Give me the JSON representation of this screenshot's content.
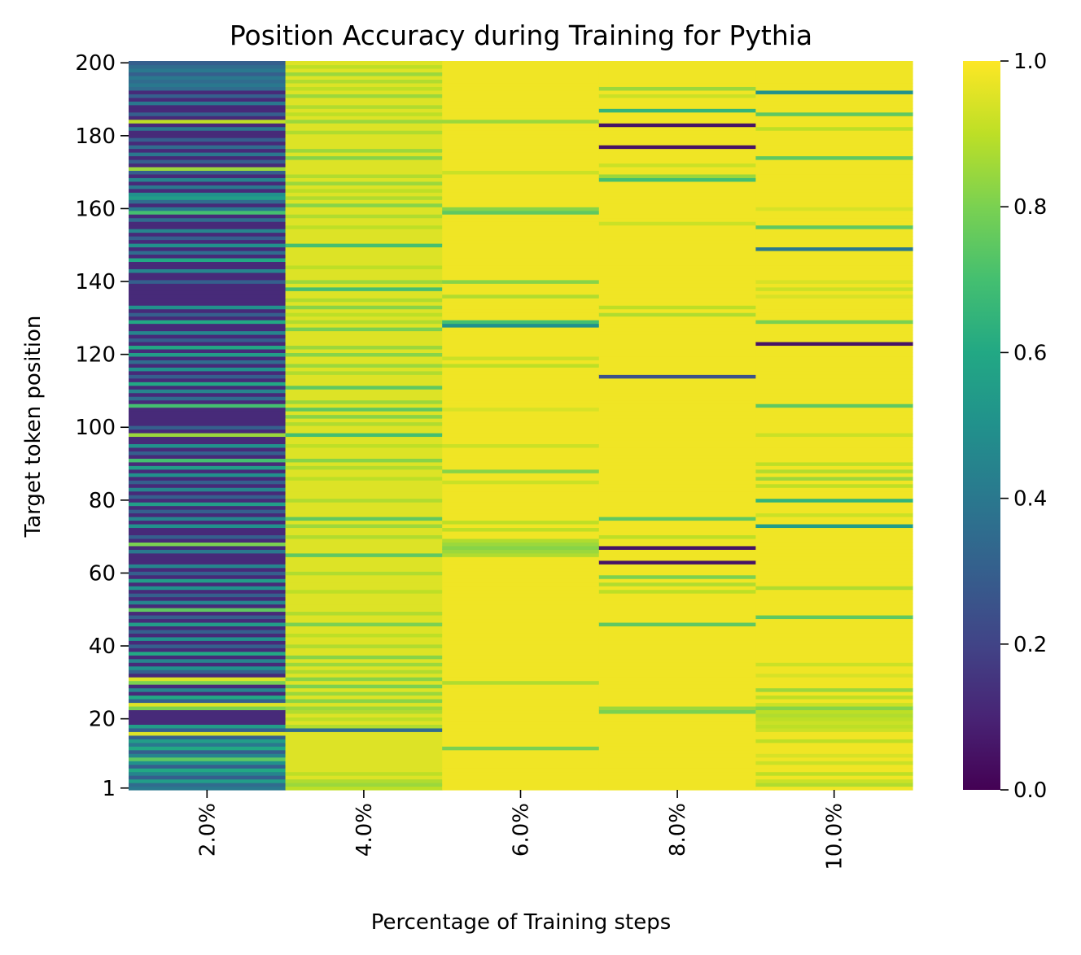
{
  "chart_data": {
    "type": "heatmap",
    "title": "Position Accuracy during Training for Pythia",
    "xlabel": "Percentage of Training steps",
    "ylabel": "Target token position",
    "categories": [
      "2.0%",
      "4.0%",
      "6.0%",
      "8.0%",
      "10.0%"
    ],
    "y_range": [
      1,
      200
    ],
    "y_ticks": [
      "1",
      "20",
      "40",
      "60",
      "80",
      "100",
      "120",
      "140",
      "160",
      "180",
      "200"
    ],
    "colorbar": {
      "range": [
        0,
        1
      ],
      "ticks": [
        "0.0",
        "0.2",
        "0.4",
        "0.6",
        "0.8",
        "1.0"
      ],
      "colormap": "viridis"
    },
    "series": [
      {
        "category": "2.0%",
        "base_value": 0.12,
        "overrides": [
          [
            1,
            0.4
          ],
          [
            2,
            0.35
          ],
          [
            3,
            0.55
          ],
          [
            4,
            0.3
          ],
          [
            5,
            0.45
          ],
          [
            6,
            0.6
          ],
          [
            7,
            0.3
          ],
          [
            8,
            0.5
          ],
          [
            9,
            0.75
          ],
          [
            10,
            0.45
          ],
          [
            11,
            0.3
          ],
          [
            12,
            0.6
          ],
          [
            13,
            0.4
          ],
          [
            14,
            0.55
          ],
          [
            15,
            0.3
          ],
          [
            16,
            0.95
          ],
          [
            17,
            0.3
          ],
          [
            18,
            0.55
          ],
          [
            23,
            0.8
          ],
          [
            24,
            0.95
          ],
          [
            25,
            0.3
          ],
          [
            26,
            0.6
          ],
          [
            28,
            0.45
          ],
          [
            30,
            0.8
          ],
          [
            31,
            0.95
          ],
          [
            33,
            0.3
          ],
          [
            34,
            0.5
          ],
          [
            36,
            0.45
          ],
          [
            38,
            0.6
          ],
          [
            40,
            0.3
          ],
          [
            42,
            0.5
          ],
          [
            44,
            0.3
          ],
          [
            46,
            0.55
          ],
          [
            48,
            0.3
          ],
          [
            50,
            0.75
          ],
          [
            52,
            0.45
          ],
          [
            54,
            0.3
          ],
          [
            56,
            0.5
          ],
          [
            58,
            0.55
          ],
          [
            60,
            0.3
          ],
          [
            62,
            0.45
          ],
          [
            66,
            0.4
          ],
          [
            68,
            0.8
          ],
          [
            70,
            0.3
          ],
          [
            73,
            0.5
          ],
          [
            75,
            0.45
          ],
          [
            77,
            0.3
          ],
          [
            79,
            0.55
          ],
          [
            81,
            0.3
          ],
          [
            83,
            0.45
          ],
          [
            85,
            0.3
          ],
          [
            87,
            0.5
          ],
          [
            89,
            0.55
          ],
          [
            91,
            0.7
          ],
          [
            93,
            0.3
          ],
          [
            95,
            0.5
          ],
          [
            98,
            0.85
          ],
          [
            100,
            0.3
          ],
          [
            106,
            0.7
          ],
          [
            108,
            0.35
          ],
          [
            110,
            0.45
          ],
          [
            112,
            0.6
          ],
          [
            114,
            0.3
          ],
          [
            116,
            0.5
          ],
          [
            118,
            0.35
          ],
          [
            120,
            0.55
          ],
          [
            122,
            0.6
          ],
          [
            124,
            0.3
          ],
          [
            126,
            0.45
          ],
          [
            129,
            0.6
          ],
          [
            131,
            0.3
          ],
          [
            133,
            0.5
          ],
          [
            140,
            0.3
          ],
          [
            143,
            0.45
          ],
          [
            146,
            0.6
          ],
          [
            148,
            0.35
          ],
          [
            150,
            0.5
          ],
          [
            152,
            0.3
          ],
          [
            154,
            0.45
          ],
          [
            157,
            0.35
          ],
          [
            159,
            0.7
          ],
          [
            160,
            0.4
          ],
          [
            162,
            0.35
          ],
          [
            163,
            0.55
          ],
          [
            164,
            0.5
          ],
          [
            166,
            0.4
          ],
          [
            168,
            0.45
          ],
          [
            170,
            0.3
          ],
          [
            171,
            0.85
          ],
          [
            173,
            0.3
          ],
          [
            175,
            0.4
          ],
          [
            177,
            0.35
          ],
          [
            179,
            0.3
          ],
          [
            182,
            0.4
          ],
          [
            184,
            0.9
          ],
          [
            186,
            0.3
          ],
          [
            189,
            0.4
          ],
          [
            191,
            0.3
          ],
          [
            193,
            0.35
          ],
          [
            194,
            0.4
          ],
          [
            195,
            0.35
          ],
          [
            196,
            0.4
          ],
          [
            197,
            0.3
          ],
          [
            198,
            0.4
          ],
          [
            199,
            0.35
          ],
          [
            200,
            0.3
          ]
        ]
      },
      {
        "category": "4.0%",
        "base_value": 0.95,
        "overrides": [
          [
            1,
            0.9
          ],
          [
            2,
            0.85
          ],
          [
            3,
            0.88
          ],
          [
            5,
            0.9
          ],
          [
            17,
            0.35
          ],
          [
            18,
            0.88
          ],
          [
            20,
            0.9
          ],
          [
            22,
            0.88
          ],
          [
            23,
            0.85
          ],
          [
            25,
            0.82
          ],
          [
            27,
            0.85
          ],
          [
            29,
            0.8
          ],
          [
            31,
            0.82
          ],
          [
            33,
            0.88
          ],
          [
            35,
            0.85
          ],
          [
            37,
            0.82
          ],
          [
            40,
            0.88
          ],
          [
            43,
            0.9
          ],
          [
            46,
            0.8
          ],
          [
            49,
            0.88
          ],
          [
            55,
            0.9
          ],
          [
            60,
            0.88
          ],
          [
            65,
            0.75
          ],
          [
            70,
            0.88
          ],
          [
            73,
            0.85
          ],
          [
            75,
            0.75
          ],
          [
            80,
            0.88
          ],
          [
            86,
            0.9
          ],
          [
            89,
            0.88
          ],
          [
            91,
            0.82
          ],
          [
            95,
            0.9
          ],
          [
            98,
            0.7
          ],
          [
            101,
            0.88
          ],
          [
            103,
            0.82
          ],
          [
            105,
            0.75
          ],
          [
            107,
            0.85
          ],
          [
            111,
            0.75
          ],
          [
            115,
            0.88
          ],
          [
            117,
            0.85
          ],
          [
            120,
            0.82
          ],
          [
            122,
            0.85
          ],
          [
            127,
            0.8
          ],
          [
            129,
            0.88
          ],
          [
            131,
            0.9
          ],
          [
            133,
            0.82
          ],
          [
            135,
            0.88
          ],
          [
            138,
            0.7
          ],
          [
            140,
            0.85
          ],
          [
            144,
            0.9
          ],
          [
            150,
            0.7
          ],
          [
            155,
            0.9
          ],
          [
            158,
            0.88
          ],
          [
            161,
            0.82
          ],
          [
            163,
            0.88
          ],
          [
            165,
            0.9
          ],
          [
            167,
            0.85
          ],
          [
            169,
            0.88
          ],
          [
            174,
            0.82
          ],
          [
            176,
            0.85
          ],
          [
            181,
            0.88
          ],
          [
            184,
            0.85
          ],
          [
            186,
            0.9
          ],
          [
            188,
            0.88
          ],
          [
            191,
            0.85
          ],
          [
            193,
            0.9
          ],
          [
            195,
            0.88
          ],
          [
            197,
            0.85
          ],
          [
            199,
            0.9
          ]
        ]
      },
      {
        "category": "6.0%",
        "base_value": 0.98,
        "overrides": [
          [
            12,
            0.8
          ],
          [
            30,
            0.88
          ],
          [
            65,
            0.88
          ],
          [
            66,
            0.85
          ],
          [
            67,
            0.82
          ],
          [
            68,
            0.85
          ],
          [
            69,
            0.88
          ],
          [
            72,
            0.9
          ],
          [
            74,
            0.9
          ],
          [
            85,
            0.92
          ],
          [
            88,
            0.82
          ],
          [
            95,
            0.92
          ],
          [
            105,
            0.94
          ],
          [
            117,
            0.9
          ],
          [
            119,
            0.92
          ],
          [
            128,
            0.5
          ],
          [
            129,
            0.7
          ],
          [
            136,
            0.88
          ],
          [
            140,
            0.82
          ],
          [
            159,
            0.75
          ],
          [
            160,
            0.82
          ],
          [
            170,
            0.92
          ],
          [
            184,
            0.85
          ]
        ]
      },
      {
        "category": "8.0%",
        "base_value": 0.98,
        "overrides": [
          [
            22,
            0.8
          ],
          [
            23,
            0.85
          ],
          [
            46,
            0.75
          ],
          [
            55,
            0.9
          ],
          [
            57,
            0.88
          ],
          [
            59,
            0.8
          ],
          [
            63,
            0.05
          ],
          [
            67,
            0.05
          ],
          [
            70,
            0.9
          ],
          [
            75,
            0.75
          ],
          [
            114,
            0.25
          ],
          [
            131,
            0.88
          ],
          [
            133,
            0.9
          ],
          [
            156,
            0.92
          ],
          [
            168,
            0.7
          ],
          [
            169,
            0.85
          ],
          [
            172,
            0.92
          ],
          [
            177,
            0.05
          ],
          [
            183,
            0.05
          ],
          [
            187,
            0.65
          ],
          [
            191,
            0.92
          ],
          [
            193,
            0.85
          ]
        ]
      },
      {
        "category": "10.0%",
        "base_value": 0.98,
        "overrides": [
          [
            2,
            0.88
          ],
          [
            3,
            0.92
          ],
          [
            5,
            0.9
          ],
          [
            8,
            0.92
          ],
          [
            10,
            0.94
          ],
          [
            14,
            0.9
          ],
          [
            17,
            0.92
          ],
          [
            18,
            0.9
          ],
          [
            19,
            0.92
          ],
          [
            20,
            0.9
          ],
          [
            21,
            0.88
          ],
          [
            22,
            0.9
          ],
          [
            23,
            0.82
          ],
          [
            24,
            0.92
          ],
          [
            26,
            0.9
          ],
          [
            28,
            0.85
          ],
          [
            32,
            0.94
          ],
          [
            35,
            0.92
          ],
          [
            48,
            0.75
          ],
          [
            56,
            0.88
          ],
          [
            73,
            0.55
          ],
          [
            76,
            0.92
          ],
          [
            80,
            0.65
          ],
          [
            84,
            0.9
          ],
          [
            86,
            0.85
          ],
          [
            88,
            0.88
          ],
          [
            90,
            0.9
          ],
          [
            98,
            0.92
          ],
          [
            106,
            0.75
          ],
          [
            123,
            0.05
          ],
          [
            129,
            0.8
          ],
          [
            136,
            0.94
          ],
          [
            138,
            0.92
          ],
          [
            140,
            0.94
          ],
          [
            149,
            0.4
          ],
          [
            155,
            0.75
          ],
          [
            160,
            0.94
          ],
          [
            174,
            0.75
          ],
          [
            182,
            0.9
          ],
          [
            186,
            0.75
          ],
          [
            192,
            0.5
          ]
        ]
      }
    ]
  }
}
